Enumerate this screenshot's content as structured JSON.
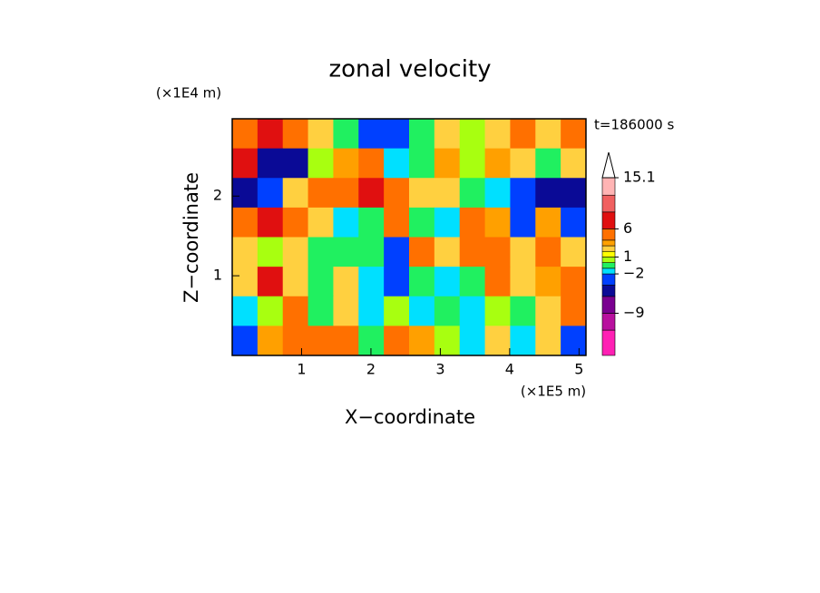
{
  "chart_data": {
    "type": "contour",
    "title": "zonal velocity",
    "time_label": "t=186000 s",
    "x_label": "X−coordinate",
    "y_label": "Z−coordinate",
    "x_unit": "(×1E5 m)",
    "y_unit": "(×1E4 m)",
    "xlim": [
      0,
      5.1
    ],
    "ylim": [
      0,
      2.97
    ],
    "xticks": [
      1,
      2,
      3,
      4,
      5
    ],
    "yticks": [
      1,
      2
    ],
    "values": [
      [
        5,
        7,
        5,
        2,
        -1,
        -3,
        -4,
        -1,
        2,
        0,
        2,
        5,
        2,
        5
      ],
      [
        7,
        -5,
        -6,
        0,
        3,
        5,
        -2,
        -1,
        3,
        0,
        3,
        2,
        -1,
        2
      ],
      [
        -5,
        -3,
        2,
        4,
        5,
        7,
        5,
        2,
        2,
        -1,
        -2,
        -4,
        -5,
        -5
      ],
      [
        5,
        6,
        4,
        2,
        -2,
        -1,
        4,
        -1,
        -2,
        4,
        3,
        -3,
        3,
        -3
      ],
      [
        2,
        0,
        2,
        -1,
        -1,
        -1,
        -4,
        5,
        2,
        4,
        4,
        2,
        4,
        2
      ],
      [
        2,
        6,
        2,
        -1,
        2,
        -2,
        -4,
        -1,
        -2,
        -1,
        4,
        2,
        3,
        5
      ],
      [
        -2,
        0,
        4,
        -1,
        2,
        -2,
        0,
        -2,
        -1,
        -2,
        0,
        -1,
        2,
        5
      ],
      [
        -3,
        3,
        4,
        4,
        5,
        -1,
        4,
        3,
        0,
        -2,
        2,
        -2,
        2,
        -3
      ]
    ],
    "colorbar": {
      "bounds": [
        -16.5,
        -12,
        -9,
        -6,
        -4,
        -2,
        -1,
        0,
        1,
        2,
        3,
        4,
        6,
        9,
        12,
        15.1
      ],
      "colors": [
        "#ff20b4",
        "#b8109e",
        "#7a0090",
        "#0a0a96",
        "#0040ff",
        "#00e0ff",
        "#20f060",
        "#a8ff10",
        "#ffff00",
        "#ffd040",
        "#ffa000",
        "#ff7000",
        "#e01010",
        "#f06060",
        "#ffb4b4"
      ],
      "ticks": [
        15.1,
        6,
        1,
        {
          "value": -2,
          "label": "−2"
        },
        {
          "value": -9,
          "label": "−9"
        }
      ]
    }
  }
}
